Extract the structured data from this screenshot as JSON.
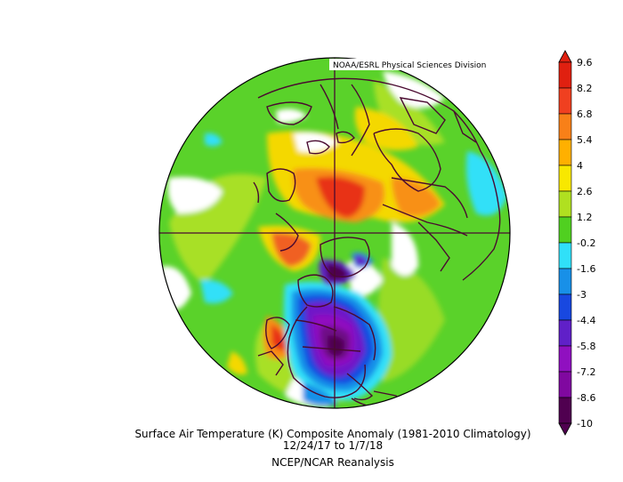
{
  "map": {
    "credit": "NOAA/ESRL Physical Sciences Division",
    "title": "Surface Air Temperature (K) Composite Anomaly (1981-2010 Climatology)",
    "date_range": "12/24/17  to 1/7/18",
    "source": "NCEP/NCAR Reanalysis",
    "projection": "north-polar-stereographic"
  },
  "legend": {
    "levels": [
      {
        "label": "9.6",
        "color": "#e02010"
      },
      {
        "label": "8.2",
        "color": "#f04020"
      },
      {
        "label": "6.8",
        "color": "#f88018"
      },
      {
        "label": "5.4",
        "color": "#ffb000"
      },
      {
        "label": "4",
        "color": "#f8e800"
      },
      {
        "label": "2.6",
        "color": "#b0e020"
      },
      {
        "label": "1.2",
        "color": "#50d020"
      },
      {
        "label": "-0.2",
        "color": "#ffffff"
      },
      {
        "label": "-1.6",
        "color": "#30e0f8"
      },
      {
        "label": "-3",
        "color": "#1890e8"
      },
      {
        "label": "-4.4",
        "color": "#1848e0"
      },
      {
        "label": "-5.8",
        "color": "#6020c8"
      },
      {
        "label": "-7.2",
        "color": "#9010c0"
      },
      {
        "label": "-8.6",
        "color": "#8008a0"
      },
      {
        "label": "-10",
        "color": "#500050"
      }
    ]
  }
}
